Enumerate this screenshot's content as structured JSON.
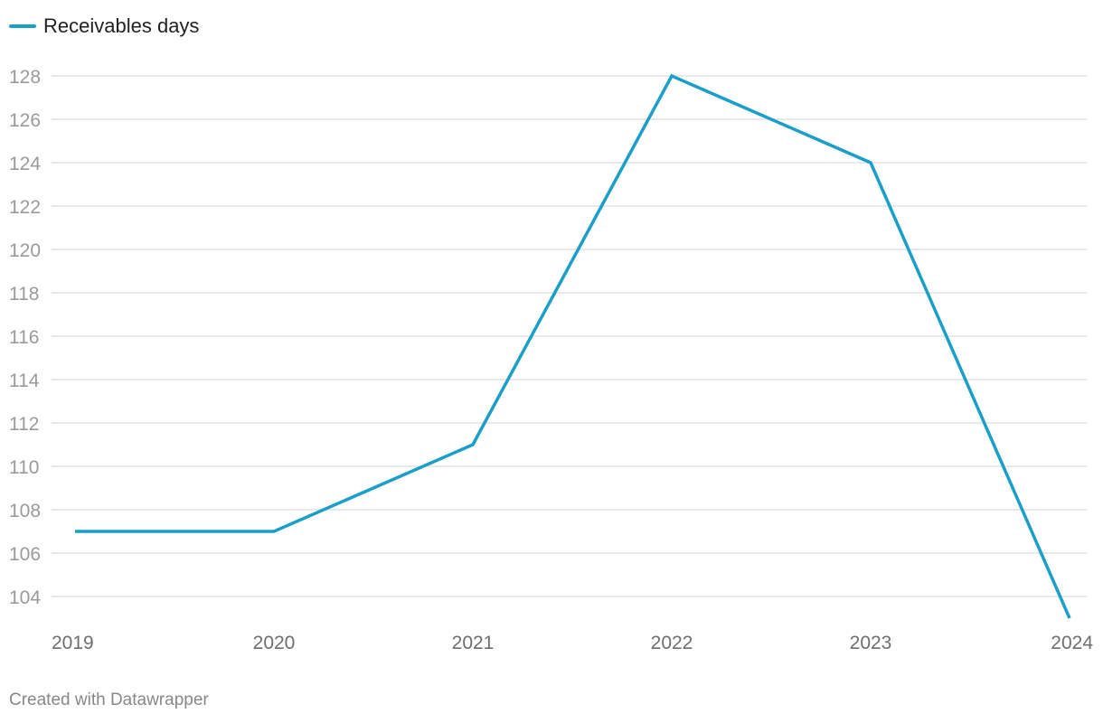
{
  "chart_data": {
    "type": "line",
    "title": "",
    "xlabel": "",
    "ylabel": "",
    "categories": [
      "2019",
      "2020",
      "2021",
      "2022",
      "2023",
      "2024"
    ],
    "series": [
      {
        "name": "Receivables days",
        "values": [
          107,
          107,
          111,
          128,
          124,
          103
        ],
        "color": "#1a9fc9"
      }
    ],
    "ylim": [
      103,
      128
    ],
    "yticks": [
      104,
      106,
      108,
      110,
      112,
      114,
      116,
      118,
      120,
      122,
      124,
      126,
      128
    ],
    "grid": true,
    "legend_position": "top-left"
  },
  "footer": {
    "credit": "Created with Datawrapper"
  }
}
